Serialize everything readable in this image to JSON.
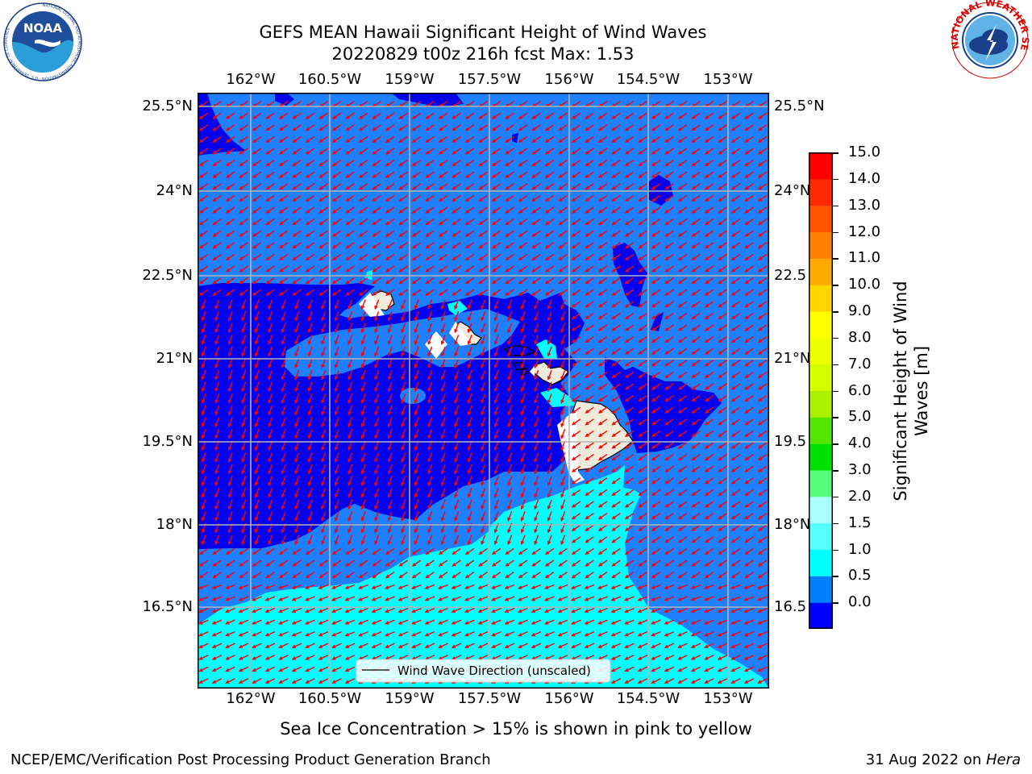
{
  "title": {
    "line1": "GEFS MEAN Hawaii Significant Height of Wind Waves",
    "line2": "20220829 t00z 216h fcst   Max: 1.53"
  },
  "logos": {
    "noaa": {
      "text": "NOAA",
      "ring_text": "NATIONAL OCEANIC AND ATMOSPHERIC ADMINISTRATION · U.S. DEPARTMENT OF COMMERCE"
    },
    "nws": {
      "ring_text": "NATIONAL WEATHER SERVICE"
    }
  },
  "map": {
    "lon_ticks": [
      "162°W",
      "160.5°W",
      "159°W",
      "157.5°W",
      "156°W",
      "154.5°W",
      "153°W"
    ],
    "lat_ticks": [
      "25.5°N",
      "24°N",
      "22.5°N",
      "21°N",
      "19.5°N",
      "18°N",
      "16.5°N"
    ],
    "right_lat_ticks": [
      "25.5°N",
      "24°N",
      "22.5",
      "21°N",
      "19.5",
      "18°N",
      "16.5"
    ],
    "legend_label": "Wind Wave Direction (unscaled)",
    "colors": {
      "ocean_0_0_5": "#0000ee",
      "ocean_0_5_1_0": "#1e7fff",
      "ocean_1_0_1_5": "#00ffff",
      "land": "#efebda",
      "arrow": "#ff0000",
      "grid": "#b0b0b0"
    }
  },
  "colorbar": {
    "label_line1": "Significant Height of Wind",
    "label_line2": "Waves [m]",
    "ticks": [
      "15.0",
      "14.0",
      "13.0",
      "12.0",
      "11.0",
      "10.0",
      "9.0",
      "8.0",
      "7.0",
      "6.0",
      "5.0",
      "4.0",
      "3.0",
      "2.0",
      "1.5",
      "1.0",
      "0.5",
      "0.0"
    ],
    "colors": [
      "#0000ff",
      "#007fff",
      "#00ffff",
      "#55ffff",
      "#aaffff",
      "#55ff7f",
      "#00e000",
      "#55e600",
      "#aaf000",
      "#d4ff00",
      "#eeff00",
      "#ffff00",
      "#ffd400",
      "#ffaa00",
      "#ff8000",
      "#ff5500",
      "#ff2a00",
      "#ff0000"
    ]
  },
  "sea_ice_note": "Sea Ice Concentration > 15% is shown in pink to yellow",
  "footer": {
    "left": "NCEP/EMC/Verification Post Processing Product Generation Branch",
    "right_date": "31 Aug 2022 on ",
    "right_host": "Hera"
  }
}
